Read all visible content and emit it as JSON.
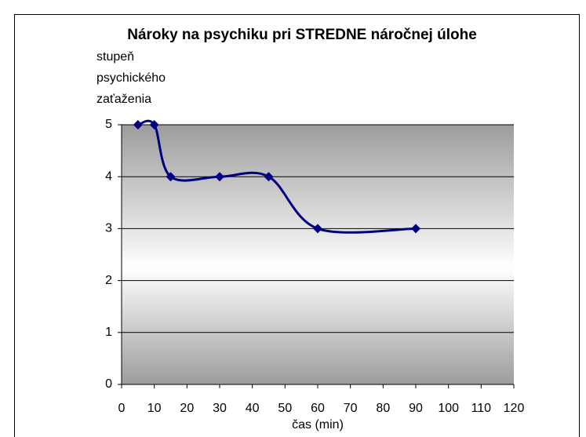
{
  "chart_data": {
    "type": "line",
    "title": "Nároky na psychiku pri STREDNE náročnej úlohe",
    "ylabel": [
      "stupeň",
      "psychického",
      "zaťaženia"
    ],
    "xlabel": "čas (min)",
    "x": [
      5,
      10,
      15,
      30,
      45,
      60,
      90
    ],
    "series": [
      {
        "name": "stupeň psychického zaťaženia",
        "color": "#000080",
        "values": [
          5,
          5,
          4,
          4,
          4,
          3,
          3
        ]
      }
    ],
    "xlim": [
      0,
      120
    ],
    "xticks": [
      0,
      10,
      20,
      30,
      40,
      50,
      60,
      70,
      80,
      90,
      100,
      110,
      120
    ],
    "ylim": [
      0,
      5
    ],
    "yticks": [
      0,
      1,
      2,
      3,
      4,
      5
    ],
    "grid": true,
    "smooth": true
  }
}
